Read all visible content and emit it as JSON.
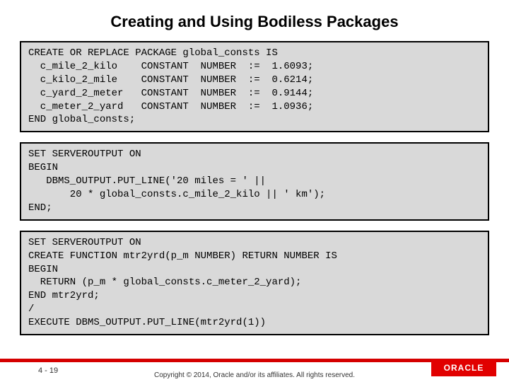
{
  "title": "Creating and Using Bodiless Packages",
  "blocks": {
    "b1": "CREATE OR REPLACE PACKAGE global_consts IS\n  c_mile_2_kilo    CONSTANT  NUMBER  :=  1.6093;\n  c_kilo_2_mile    CONSTANT  NUMBER  :=  0.6214;\n  c_yard_2_meter   CONSTANT  NUMBER  :=  0.9144;\n  c_meter_2_yard   CONSTANT  NUMBER  :=  1.0936;\nEND global_consts;",
    "b2": "SET SERVEROUTPUT ON\nBEGIN\n   DBMS_OUTPUT.PUT_LINE('20 miles = ' ||\n       20 * global_consts.c_mile_2_kilo || ' km');\nEND;",
    "b3": "SET SERVEROUTPUT ON\nCREATE FUNCTION mtr2yrd(p_m NUMBER) RETURN NUMBER IS\nBEGIN\n  RETURN (p_m * global_consts.c_meter_2_yard);\nEND mtr2yrd;\n/\nEXECUTE DBMS_OUTPUT.PUT_LINE(mtr2yrd(1))"
  },
  "footer": {
    "page": "4 - 19",
    "copyright": "Copyright © 2014, Oracle and/or its affiliates. All rights reserved.",
    "brand": "ORACLE"
  },
  "colors": {
    "code_bg": "#d9d9d9",
    "code_border": "#000000",
    "accent_bar": "#d50000",
    "brand_bg": "#e10000",
    "brand_text": "#ffffff",
    "page_bg": "#ffffff"
  },
  "typography": {
    "title_fontsize": 22,
    "code_fontsize": 14,
    "footer_fontsize": 10
  }
}
